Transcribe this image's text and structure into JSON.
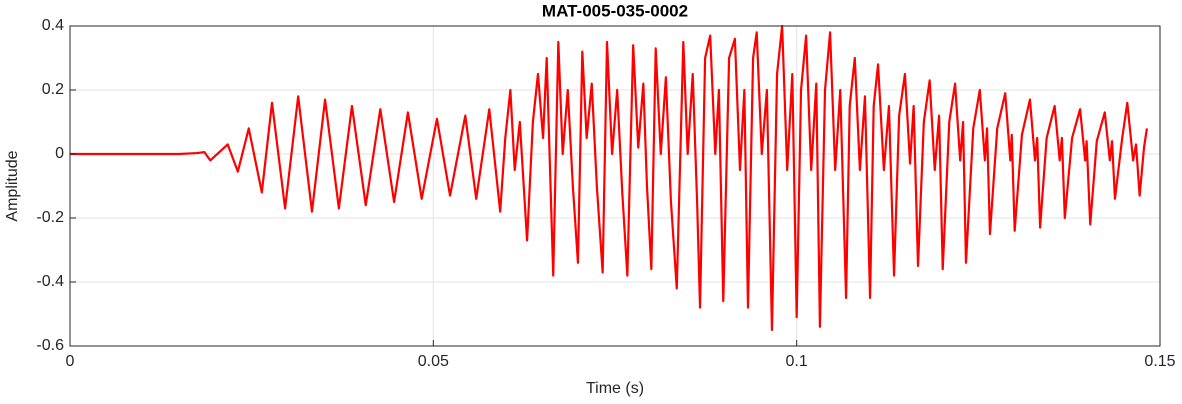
{
  "chart_data": {
    "type": "line",
    "title": "MAT-005-035-0002",
    "x_label": "Time (s)",
    "y_label": "Amplitude",
    "xlim": [
      0,
      0.15
    ],
    "xticks": [
      0,
      0.05,
      0.1,
      0.15
    ],
    "ylim": [
      -0.6,
      0.4
    ],
    "yticks": [
      -0.6,
      -0.4,
      -0.2,
      0,
      0.2,
      0.4
    ],
    "grid": true,
    "x": [
      0,
      0.005,
      0.01,
      0.015,
      0.0175,
      0.0185,
      0.0193,
      0.0205,
      0.0217,
      0.0231,
      0.0246,
      0.0264,
      0.0278,
      0.0296,
      0.0314,
      0.0333,
      0.0351,
      0.037,
      0.0388,
      0.0407,
      0.0427,
      0.0446,
      0.0465,
      0.0484,
      0.0505,
      0.0523,
      0.0544,
      0.0559,
      0.0577,
      0.0592,
      0.0599,
      0.0606,
      0.0612,
      0.0619,
      0.0629,
      0.0637,
      0.0644,
      0.0651,
      0.0656,
      0.0665,
      0.0672,
      0.0678,
      0.0685,
      0.0692,
      0.0699,
      0.0705,
      0.0711,
      0.0718,
      0.0725,
      0.0733,
      0.0739,
      0.0746,
      0.0753,
      0.076,
      0.0767,
      0.0775,
      0.0782,
      0.0789,
      0.0794,
      0.08,
      0.0806,
      0.0813,
      0.082,
      0.0827,
      0.0835,
      0.0844,
      0.085,
      0.0857,
      0.0863,
      0.0867,
      0.0874,
      0.0881,
      0.0888,
      0.0893,
      0.0899,
      0.0907,
      0.0915,
      0.0922,
      0.0928,
      0.0933,
      0.094,
      0.0945,
      0.0952,
      0.0959,
      0.0966,
      0.0973,
      0.098,
      0.0987,
      0.0994,
      0.1,
      0.1006,
      0.1013,
      0.102,
      0.1027,
      0.1032,
      0.1039,
      0.1046,
      0.1053,
      0.106,
      0.1068,
      0.1073,
      0.108,
      0.1087,
      0.1094,
      0.1101,
      0.1106,
      0.1112,
      0.112,
      0.1127,
      0.1134,
      0.1141,
      0.1149,
      0.1156,
      0.1161,
      0.1167,
      0.1175,
      0.1183,
      0.119,
      0.1196,
      0.1201,
      0.121,
      0.1218,
      0.1225,
      0.1229,
      0.1233,
      0.1243,
      0.1252,
      0.1259,
      0.1262,
      0.1266,
      0.1276,
      0.1287,
      0.1294,
      0.1296,
      0.13,
      0.131,
      0.1321,
      0.1328,
      0.1331,
      0.1335,
      0.1344,
      0.1355,
      0.1362,
      0.1365,
      0.1369,
      0.1379,
      0.139,
      0.1397,
      0.1399,
      0.1404,
      0.1413,
      0.1424,
      0.1431,
      0.1434,
      0.1438,
      0.1448,
      0.1455,
      0.1463,
      0.1467,
      0.1472,
      0.1478,
      0.1482
    ],
    "series": [
      {
        "name": "Amplitude",
        "color": "#ff0000",
        "values": [
          0,
          0,
          0,
          0,
          0.003,
          0.006,
          -0.02,
          0.005,
          0.03,
          -0.055,
          0.08,
          -0.12,
          0.16,
          -0.17,
          0.18,
          -0.18,
          0.17,
          -0.17,
          0.15,
          -0.16,
          0.14,
          -0.15,
          0.13,
          -0.14,
          0.11,
          -0.13,
          0.12,
          -0.14,
          0.14,
          -0.18,
          0.05,
          0.2,
          -0.05,
          0.1,
          -0.27,
          0.1,
          0.25,
          0.05,
          0.3,
          -0.38,
          0.35,
          0,
          0.2,
          -0.1,
          -0.34,
          0.32,
          0.05,
          0.22,
          -0.1,
          -0.37,
          0.35,
          0,
          0.2,
          -0.12,
          -0.38,
          0.34,
          0.02,
          0.22,
          -0.1,
          -0.36,
          0.33,
          0,
          0.24,
          -0.15,
          -0.42,
          0.35,
          0,
          0.25,
          -0.15,
          -0.48,
          0.3,
          0.37,
          0,
          0.2,
          -0.46,
          0.3,
          0.36,
          -0.05,
          0.2,
          -0.48,
          0.3,
          0.38,
          0,
          0.2,
          -0.55,
          0.25,
          0.4,
          -0.05,
          0.25,
          -0.51,
          0.2,
          0.37,
          -0.05,
          0.22,
          -0.54,
          0.2,
          0.38,
          -0.05,
          0.2,
          -0.45,
          0.15,
          0.3,
          -0.05,
          0.18,
          -0.45,
          0.15,
          0.28,
          -0.05,
          0.15,
          -0.38,
          0.12,
          0.25,
          -0.03,
          0.15,
          -0.35,
          0.1,
          0.23,
          -0.05,
          0.12,
          -0.36,
          0.1,
          0.22,
          -0.02,
          0.1,
          -0.34,
          0.08,
          0.2,
          -0.02,
          0.08,
          -0.25,
          0.08,
          0.19,
          -0.02,
          0.06,
          -0.24,
          0.06,
          0.17,
          -0.02,
          0.05,
          -0.23,
          0.05,
          0.15,
          -0.02,
          0.05,
          -0.2,
          0.05,
          0.14,
          -0.02,
          0.04,
          -0.22,
          0.04,
          0.13,
          -0.02,
          0.04,
          -0.14,
          0.05,
          0.16,
          -0.02,
          0.03,
          -0.13,
          0.02,
          0.08
        ]
      }
    ]
  }
}
